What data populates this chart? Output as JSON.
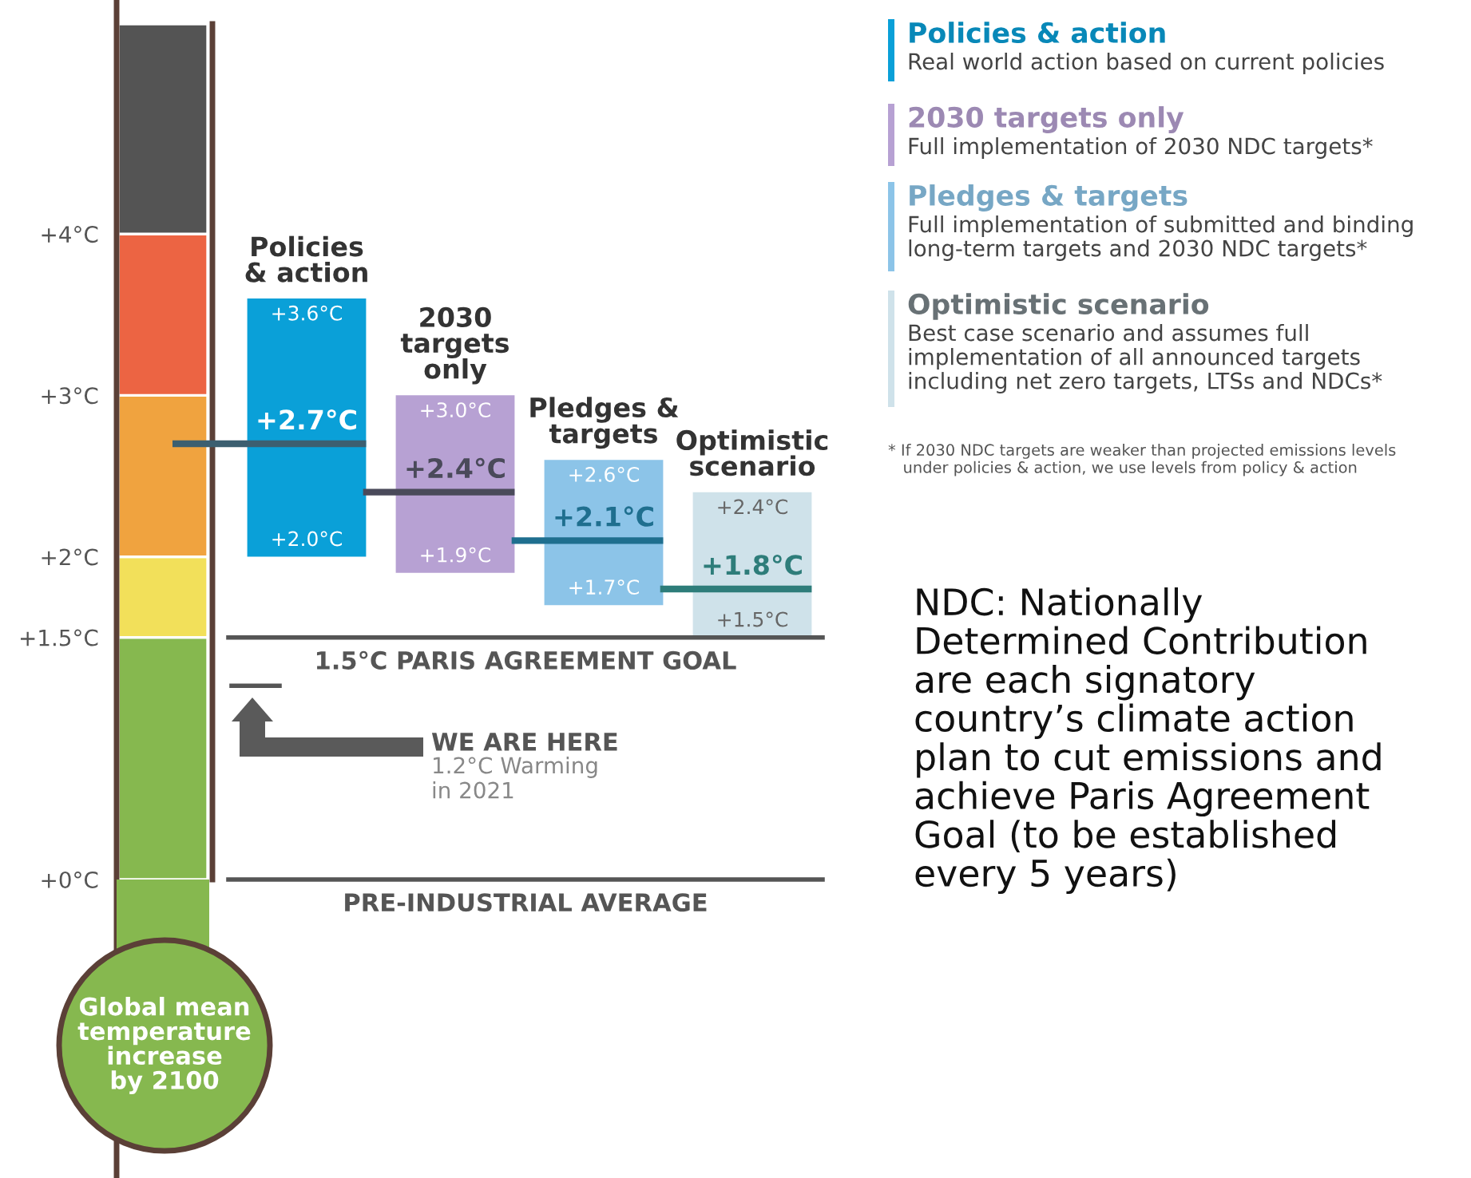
{
  "chart_data": {
    "type": "bar",
    "categories": [
      null,
      null,
      null,
      null
    ],
    "base": [
      2.0,
      1.9,
      1.7,
      1.5
    ],
    "values": [
      1.6,
      1.1,
      0.9,
      0.9
    ],
    "colors": [
      "#0aa0d8",
      "#b7a1d3",
      "#8cc4e8",
      "#cfe2ea"
    ],
    "ylim": [
      -1.85,
      5.45
    ],
    "yticks": [
      {
        "value": 0,
        "label": "+0°C"
      },
      {
        "value": 1.5,
        "label": "+1.5°C"
      },
      {
        "value": 2,
        "label": "+2°C"
      },
      {
        "value": 3,
        "label": "+3°C"
      },
      {
        "value": 4,
        "label": "+4°C"
      }
    ],
    "tick_labels": "y",
    "ref_lines": [
      {
        "axis": "y",
        "value": 2.7,
        "label": "+2.7°C",
        "color": "#3c5f70"
      },
      {
        "axis": "y",
        "value": 2.4,
        "label": "+2.4°C",
        "color": "#4a4a5a"
      },
      {
        "axis": "y",
        "value": 2.1,
        "label": "+2.1°C",
        "color": "#1f6f8f"
      },
      {
        "axis": "y",
        "value": 1.8,
        "label": "+1.8°C",
        "color": "#2e7d7a"
      },
      {
        "axis": "y",
        "value": 1.5,
        "label": "1.5°C PARIS AGREEMENT GOAL",
        "color": "#555555"
      },
      {
        "axis": "y",
        "value": 0,
        "label": "PRE-INDUSTRIAL AVERAGE",
        "color": "#555555"
      },
      {
        "axis": "y",
        "value": 1.2,
        "color": "#555555"
      }
    ],
    "annotations": [
      {
        "text": "+3.6°C",
        "y": 3.6
      },
      {
        "text": "+2.0°C",
        "y": 2.0
      },
      {
        "text": "+3.0°C",
        "y": 3.0
      },
      {
        "text": "+1.9°C",
        "y": 1.9
      },
      {
        "text": "+2.6°C",
        "y": 2.6
      },
      {
        "text": "+1.7°C",
        "y": 1.7
      },
      {
        "text": "+2.4°C",
        "y": 2.4
      },
      {
        "text": "+1.5°C",
        "y": 1.5
      },
      "Policies\n& action",
      "2030\ntargets\nonly",
      "Pledges &\ntargets",
      "Optimistic\nscenario",
      "Policies & action",
      "Real world action based on current policies",
      "2030 targets only",
      "Full implementation of 2030 NDC targets*",
      "Pledges & targets",
      "Full implementation of submitted and binding\nlong-term targets and 2030 NDC targets*",
      "Optimistic scenario",
      "Best case scenario and assumes full\nimplementation of all announced targets\nincluding net zero targets, LTSs and NDCs*",
      "* If 2030 NDC targets are weaker than projected emissions levels\n   under policies & action, we use levels from policy & action",
      "WE ARE HERE",
      "1.2°C Warming\nin 2021",
      "Global mean\ntemperature\nincrease\nby 2100",
      "NDC: Nationally\nDetermined Contribution\nare each signatory\ncountry’s climate action\nplan to cut emissions and\nachieve Paris Agreement\nGoal (to be established\nevery 5 years)"
    ]
  }
}
